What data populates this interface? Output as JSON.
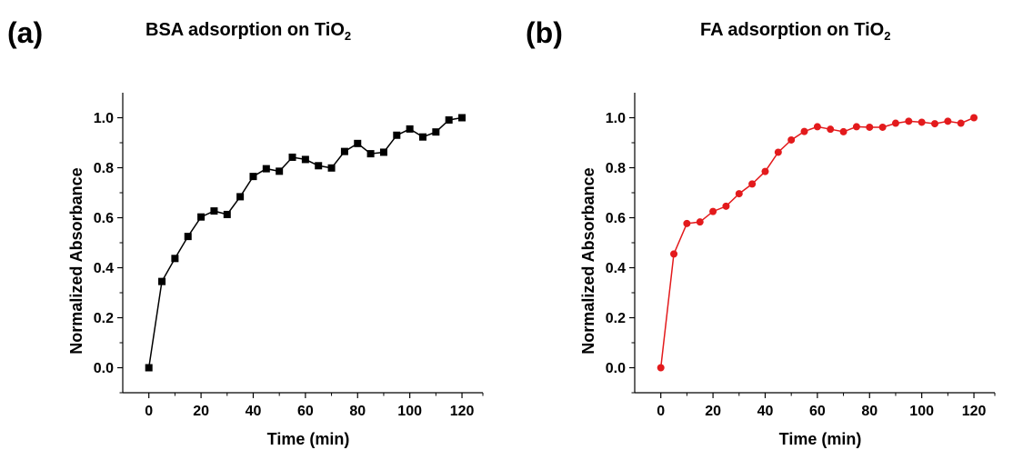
{
  "panels": [
    {
      "label": "(a)",
      "title_main": "BSA adsorption on TiO",
      "title_sub": "2"
    },
    {
      "label": "(b)",
      "title_main": "FA adsorption on TiO",
      "title_sub": "2"
    }
  ],
  "chart_data": [
    {
      "type": "line",
      "title": "BSA adsorption on TiO2",
      "xlabel": "Time (min)",
      "ylabel": "Normalized Absorbance",
      "xlim": [
        -10,
        128
      ],
      "ylim": [
        -0.1,
        1.1
      ],
      "xticks": [
        "0",
        "20",
        "40",
        "60",
        "80",
        "100",
        "120"
      ],
      "yticks": [
        "0.0",
        "0.2",
        "0.4",
        "0.6",
        "0.8",
        "1.0"
      ],
      "marker": "square",
      "color": "#000000",
      "series": [
        {
          "x": [
            0,
            5,
            10,
            15,
            20,
            25,
            30,
            35,
            40,
            45,
            50,
            55,
            60,
            65,
            70,
            75,
            80,
            85,
            90,
            95,
            100,
            105,
            110,
            115,
            120
          ],
          "values": [
            0.0,
            0.345,
            0.437,
            0.525,
            0.603,
            0.627,
            0.613,
            0.684,
            0.765,
            0.796,
            0.786,
            0.842,
            0.833,
            0.808,
            0.799,
            0.865,
            0.897,
            0.856,
            0.862,
            0.93,
            0.955,
            0.923,
            0.943,
            0.991,
            1.0
          ]
        }
      ]
    },
    {
      "type": "line",
      "title": "FA adsorption on TiO2",
      "xlabel": "Time (min)",
      "ylabel": "Normalized Absorbance",
      "xlim": [
        -10,
        128
      ],
      "ylim": [
        -0.1,
        1.1
      ],
      "xticks": [
        "0",
        "20",
        "40",
        "60",
        "80",
        "100",
        "120"
      ],
      "yticks": [
        "0.0",
        "0.2",
        "0.4",
        "0.6",
        "0.8",
        "1.0"
      ],
      "marker": "circle",
      "color": "#e31a1c",
      "series": [
        {
          "x": [
            0,
            5,
            10,
            15,
            20,
            25,
            30,
            35,
            40,
            45,
            50,
            55,
            60,
            65,
            70,
            75,
            80,
            85,
            90,
            95,
            100,
            105,
            110,
            115,
            120
          ],
          "values": [
            0.0,
            0.455,
            0.577,
            0.583,
            0.625,
            0.646,
            0.696,
            0.735,
            0.785,
            0.862,
            0.911,
            0.945,
            0.964,
            0.954,
            0.944,
            0.964,
            0.962,
            0.962,
            0.978,
            0.986,
            0.982,
            0.976,
            0.986,
            0.978,
            1.0
          ]
        }
      ]
    }
  ]
}
